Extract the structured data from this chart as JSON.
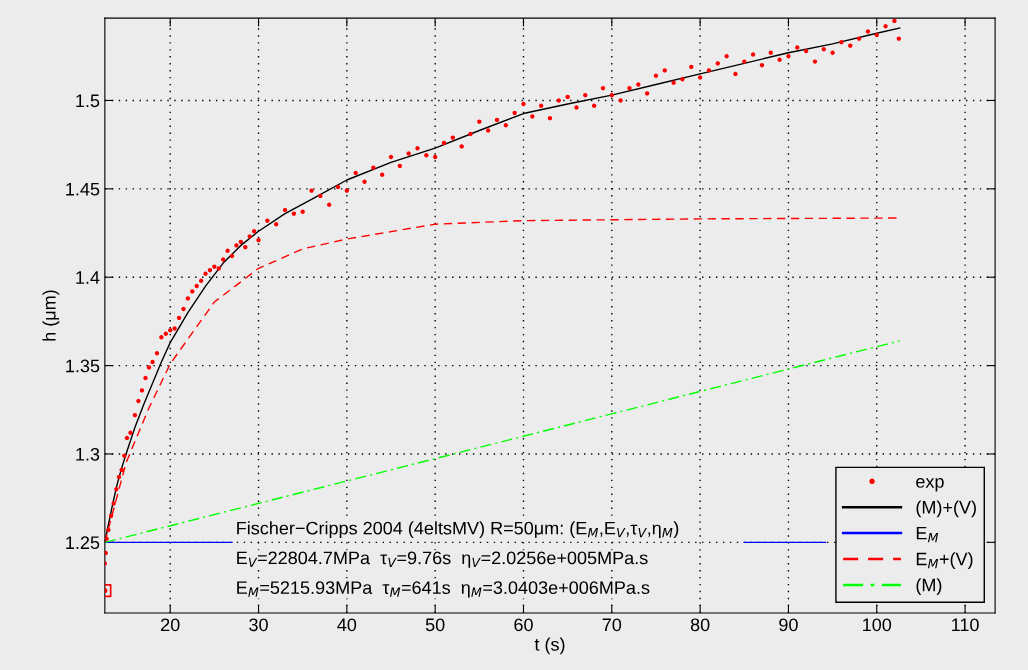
{
  "chart_data": {
    "type": "line",
    "xlabel": "t (s)",
    "ylabel": "h (μm)",
    "xlim": [
      12.6,
      113.4
    ],
    "ylim": [
      1.21,
      1.5466
    ],
    "xticks": [
      20,
      30,
      40,
      50,
      60,
      70,
      80,
      90,
      100,
      110
    ],
    "yticks": [
      1.25,
      1.3,
      1.35,
      1.4,
      1.45,
      1.5
    ],
    "grid": true,
    "legend": "bottom right",
    "annotations": [
      "Fischer−Cripps 2004 (4eltsMV) R=50μm: (E$_{M}$,E$_{V}$,τ$_{V}$,η$_{M}$)",
      "E$_{V}$=22804.7MPa  τ$_{V}$=9.76s  η$_{V}$=2.0256e+005MPa.s",
      "E$_{M}$=5215.93MPa  τ$_{M}$=641s  η$_{M}$=3.0403e+006MPa.s"
    ],
    "series": [
      {
        "name": "exp",
        "type": "scatter",
        "marker": "circle",
        "color": "#ff0000",
        "x": [
          12.6,
          12.7,
          12.8,
          13.0,
          13.3,
          13.6,
          13.9,
          14.2,
          14.5,
          14.8,
          15.1,
          15.5,
          16.0,
          16.4,
          16.8,
          17.2,
          17.6,
          18.0,
          18.5,
          19.0,
          19.5,
          20.0,
          20.5,
          21.0,
          21.5,
          22.0,
          22.5,
          23.0,
          23.5,
          24.0,
          24.5,
          25.0,
          25.5,
          26.0,
          26.5,
          27,
          27.5,
          28,
          28.5,
          29,
          29.5,
          30,
          31,
          32,
          33,
          34,
          35,
          36,
          37,
          38,
          39,
          40,
          41,
          42,
          43,
          44,
          45,
          46,
          47,
          48,
          49,
          50,
          51,
          52,
          53,
          54,
          55,
          56,
          57,
          58,
          59,
          60,
          61,
          62,
          63,
          64,
          65,
          66,
          67,
          68,
          69,
          70,
          71,
          72,
          73,
          74,
          75,
          76,
          77,
          78,
          79,
          80,
          81,
          82,
          83,
          84,
          85,
          86,
          87,
          88,
          89,
          90,
          91,
          92,
          93,
          94,
          95,
          96,
          97,
          98,
          99,
          100,
          101,
          102,
          102.5
        ],
        "values": [
          1.238,
          1.244,
          1.252,
          1.257,
          1.265,
          1.272,
          1.28,
          1.287,
          1.291,
          1.299,
          1.309,
          1.312,
          1.322,
          1.33,
          1.336,
          1.343,
          1.349,
          1.352,
          1.357,
          1.366,
          1.368,
          1.37,
          1.371,
          1.377,
          1.382,
          1.388,
          1.392,
          1.395,
          1.398,
          1.402,
          1.404,
          1.406,
          1.405,
          1.41,
          1.415,
          1.412,
          1.418,
          1.42,
          1.417,
          1.423,
          1.426,
          1.421,
          1.432,
          1.43,
          1.438,
          1.436,
          1.437,
          1.449,
          1.446,
          1.441,
          1.451,
          1.449,
          1.459,
          1.454,
          1.462,
          1.458,
          1.468,
          1.463,
          1.47,
          1.473,
          1.469,
          1.468,
          1.476,
          1.479,
          1.474,
          1.481,
          1.488,
          1.483,
          1.489,
          1.486,
          1.493,
          1.498,
          1.491,
          1.497,
          1.49,
          1.5,
          1.502,
          1.496,
          1.503,
          1.497,
          1.507,
          1.503,
          1.5,
          1.507,
          1.509,
          1.504,
          1.514,
          1.517,
          1.51,
          1.512,
          1.519,
          1.513,
          1.517,
          1.521,
          1.525,
          1.515,
          1.522,
          1.526,
          1.52,
          1.527,
          1.523,
          1.525,
          1.53,
          1.528,
          1.522,
          1.529,
          1.527,
          1.533,
          1.531,
          1.535,
          1.539,
          1.537,
          1.542,
          1.545,
          1.535
        ]
      },
      {
        "name": "(M)+(V)",
        "line_style": "solid",
        "color": "#000000",
        "x": [
          12.6,
          13,
          13.5,
          14,
          14.5,
          15,
          16,
          17,
          18,
          19,
          20,
          22,
          24,
          26,
          28,
          30,
          33,
          36,
          40,
          45,
          50,
          55,
          60,
          65,
          70,
          75,
          80,
          85,
          90,
          95,
          100,
          102.6
        ],
        "values": [
          1.25,
          1.26,
          1.272,
          1.283,
          1.292,
          1.3,
          1.315,
          1.328,
          1.34,
          1.352,
          1.363,
          1.38,
          1.395,
          1.408,
          1.418,
          1.426,
          1.436,
          1.444,
          1.455,
          1.465,
          1.473,
          1.483,
          1.4926,
          1.498,
          1.503,
          1.509,
          1.515,
          1.521,
          1.527,
          1.532,
          1.538,
          1.541
        ]
      },
      {
        "name": "E$_{M}$",
        "line_style": "solid",
        "color": "#0000ff",
        "x": [
          12.6,
          27,
          56,
          85,
          94.2
        ],
        "values": [
          1.25,
          1.25,
          null,
          1.25,
          1.25
        ]
      },
      {
        "name": "E$_{M}$+(V)",
        "line_style": "dashed",
        "color": "#ff0000",
        "x": [
          12.6,
          15,
          17.5,
          20,
          25,
          30,
          35,
          40,
          50,
          60,
          80,
          102.6
        ],
        "values": [
          1.25,
          1.295,
          1.325,
          1.351,
          1.386,
          1.405,
          1.416,
          1.4216,
          1.43,
          1.432,
          1.433,
          1.4335
        ]
      },
      {
        "name": "(M)",
        "line_style": "dashdot",
        "color": "#00ff00",
        "x": [
          12.6,
          57.6,
          102.6
        ],
        "values": [
          1.25,
          1.307,
          1.364
        ]
      },
      {
        "type": "scatter",
        "marker": "square",
        "color": "#ff0000",
        "x": [
          12.6
        ],
        "values": [
          1.2227
        ]
      }
    ]
  }
}
